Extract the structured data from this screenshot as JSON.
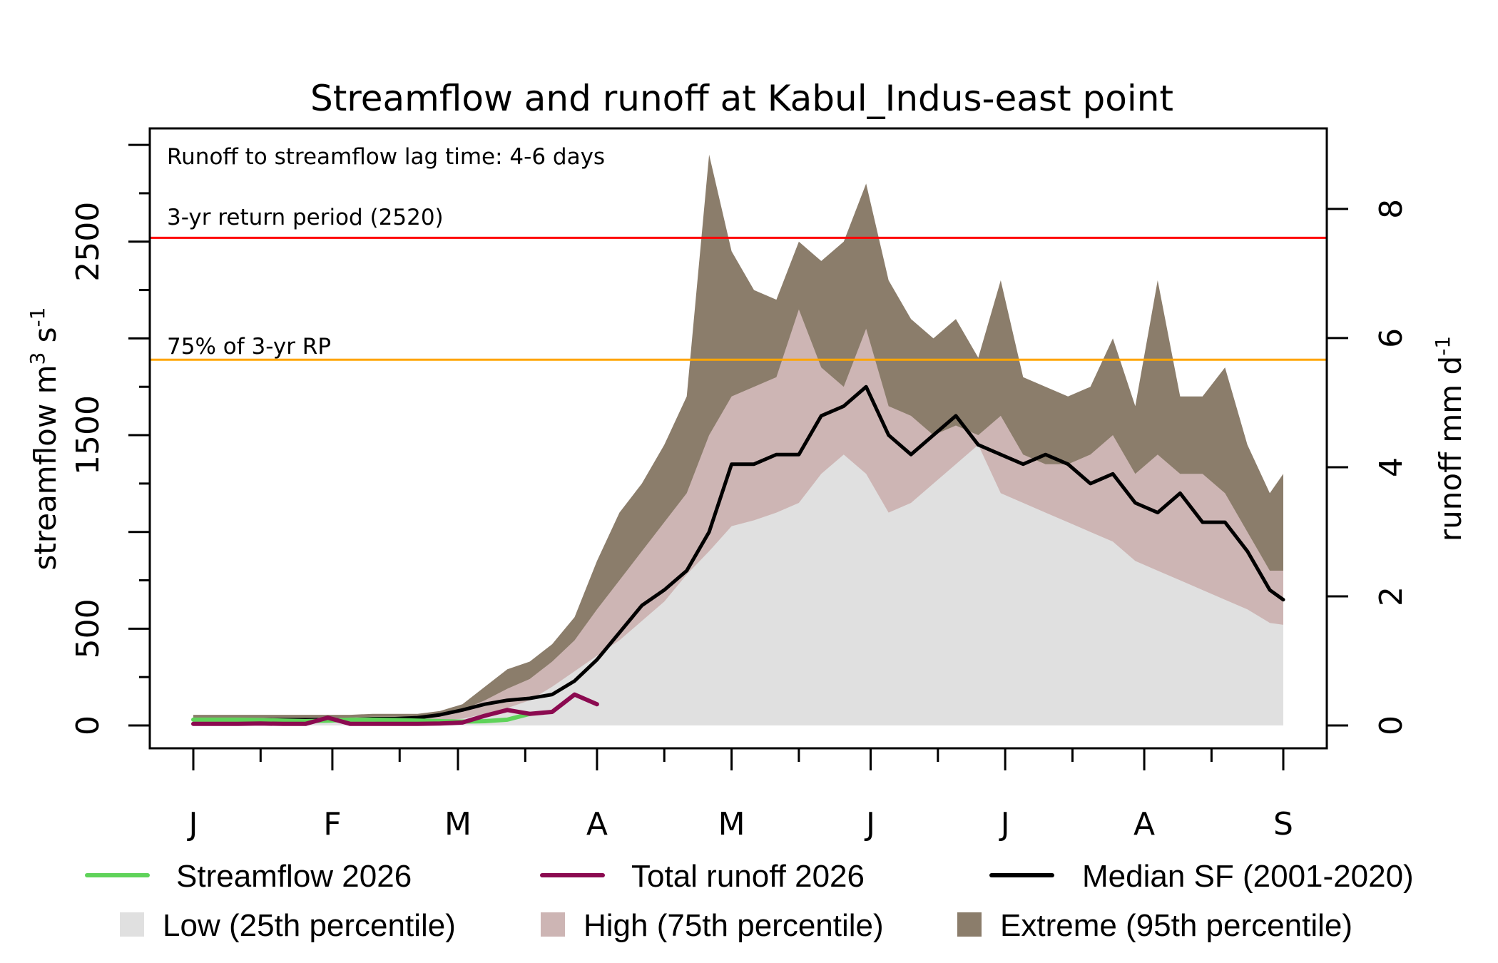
{
  "chart_data": {
    "type": "area",
    "title": "Streamflow and runoff at Kabul_Indus-east point",
    "annotation": "Runoff to streamflow lag time: 4-6 days",
    "xlabel": "",
    "ylabel": "streamflow m3 s-1",
    "ylabel_parts": {
      "base": "streamflow m",
      "sup1": "3",
      "mid": "s",
      "sup2": "-1"
    },
    "y2label_parts": {
      "base": "runoff mm d",
      "sup": "-1"
    },
    "ylim": [
      0,
      3000
    ],
    "y2_ticks": [
      0,
      2,
      4,
      6,
      8
    ],
    "y2_per_streamflow_unit": 0.0029973,
    "y_ticks": [
      0,
      500,
      1500,
      2500
    ],
    "y_minor_ticks": [
      250,
      750,
      1000,
      1250,
      1750,
      2000,
      2250,
      2750,
      3000
    ],
    "x_month_ticks": [
      {
        "label": "J",
        "day": 0
      },
      {
        "label": "F",
        "day": 31
      },
      {
        "label": "M",
        "day": 59
      },
      {
        "label": "A",
        "day": 90
      },
      {
        "label": "M",
        "day": 120
      },
      {
        "label": "J",
        "day": 151
      },
      {
        "label": "J",
        "day": 181
      },
      {
        "label": "A",
        "day": 212
      },
      {
        "label": "S",
        "day": 243
      }
    ],
    "x_minor_ticks": [
      15,
      46,
      74,
      105,
      135,
      166,
      196,
      227
    ],
    "xlim_days": [
      -10,
      256
    ],
    "reference_lines": [
      {
        "label": "3-yr return period (2520)",
        "value": 2520,
        "color": "#FF0000"
      },
      {
        "label": "75% of 3-yr RP",
        "value": 1890,
        "color": "#FFA500"
      }
    ],
    "x_days": [
      0,
      5,
      10,
      15,
      20,
      25,
      30,
      35,
      40,
      45,
      50,
      55,
      60,
      65,
      70,
      75,
      80,
      85,
      90,
      95,
      100,
      105,
      110,
      115,
      120,
      125,
      130,
      135,
      140,
      145,
      150,
      155,
      160,
      165,
      170,
      175,
      180,
      185,
      190,
      195,
      200,
      205,
      210,
      215,
      220,
      225,
      230,
      235,
      240,
      243
    ],
    "series": [
      {
        "name": "Extreme (95th percentile)",
        "kind": "band",
        "color": "#8B7D6B",
        "values": [
          55,
          55,
          55,
          55,
          55,
          55,
          55,
          55,
          60,
          60,
          60,
          75,
          110,
          200,
          290,
          330,
          420,
          560,
          850,
          1100,
          1250,
          1450,
          1700,
          2950,
          2450,
          2250,
          2200,
          2500,
          2400,
          2500,
          2800,
          2300,
          2100,
          2000,
          2100,
          1900,
          2300,
          1800,
          1750,
          1700,
          1750,
          2000,
          1650,
          2300,
          1700,
          1700,
          1850,
          1450,
          1200,
          1300
        ]
      },
      {
        "name": "High (75th percentile)",
        "kind": "band",
        "color": "#CDB5B4",
        "values": [
          40,
          40,
          40,
          40,
          40,
          40,
          40,
          40,
          45,
          45,
          45,
          55,
          80,
          130,
          190,
          240,
          330,
          440,
          600,
          750,
          900,
          1050,
          1200,
          1500,
          1700,
          1750,
          1800,
          2150,
          1850,
          1750,
          2050,
          1650,
          1600,
          1500,
          1550,
          1500,
          1600,
          1400,
          1350,
          1350,
          1400,
          1500,
          1300,
          1400,
          1300,
          1300,
          1200,
          1000,
          800,
          800
        ]
      },
      {
        "name": "Low (25th percentile)",
        "kind": "band",
        "color": "#E0E0E0",
        "values": [
          15,
          15,
          15,
          15,
          15,
          15,
          15,
          15,
          20,
          20,
          20,
          25,
          35,
          60,
          90,
          130,
          200,
          280,
          360,
          440,
          540,
          640,
          780,
          900,
          1030,
          1060,
          1100,
          1150,
          1300,
          1400,
          1300,
          1100,
          1150,
          1250,
          1350,
          1450,
          1200,
          1150,
          1100,
          1050,
          1000,
          950,
          850,
          800,
          750,
          700,
          650,
          600,
          530,
          520
        ]
      },
      {
        "name": "Median SF (2001-2020)",
        "kind": "line",
        "color": "#000000",
        "values": [
          30,
          30,
          30,
          30,
          30,
          30,
          30,
          30,
          35,
          35,
          40,
          55,
          80,
          110,
          130,
          140,
          160,
          230,
          340,
          480,
          620,
          700,
          800,
          1000,
          1350,
          1350,
          1400,
          1400,
          1600,
          1650,
          1750,
          1500,
          1400,
          1500,
          1600,
          1450,
          1400,
          1350,
          1400,
          1350,
          1250,
          1300,
          1150,
          1100,
          1200,
          1050,
          1050,
          900,
          700,
          650
        ]
      },
      {
        "name": "Streamflow 2026",
        "kind": "line",
        "color": "#5FD35A",
        "values": [
          30,
          30,
          30,
          28,
          25,
          22,
          25,
          30,
          30,
          28,
          25,
          22,
          20,
          22,
          30,
          60,
          null,
          null,
          null,
          null,
          null,
          null,
          null,
          null,
          null,
          null,
          null,
          null,
          null,
          null,
          null,
          null,
          null,
          null,
          null,
          null,
          null,
          null,
          null,
          null,
          null,
          null,
          null,
          null,
          null,
          null,
          null,
          null,
          null,
          null
        ]
      },
      {
        "name": "Total runoff 2026",
        "kind": "line",
        "axis": "right",
        "color": "#8B0A50",
        "values_streamflow_equiv": [
          8,
          8,
          8,
          10,
          8,
          8,
          40,
          8,
          8,
          8,
          8,
          10,
          15,
          50,
          80,
          60,
          70,
          160,
          110,
          null,
          null,
          null,
          null,
          null,
          null,
          null,
          null,
          null,
          null,
          null,
          null,
          null,
          null,
          null,
          null,
          null,
          null,
          null,
          null,
          null,
          null,
          null,
          null,
          null,
          null,
          null,
          null,
          null,
          null,
          null
        ]
      }
    ],
    "legend": {
      "placement": "bottom",
      "items": [
        {
          "label": "Streamflow 2026",
          "kind": "line",
          "color": "#5FD35A"
        },
        {
          "label": "Total runoff 2026",
          "kind": "line",
          "color": "#8B0A50"
        },
        {
          "label": "Median SF (2001-2020)",
          "kind": "line",
          "color": "#000000"
        },
        {
          "label": "Low (25th percentile)",
          "kind": "box",
          "color": "#E0E0E0"
        },
        {
          "label": "High (75th percentile)",
          "kind": "box",
          "color": "#CDB5B4"
        },
        {
          "label": "Extreme (95th percentile)",
          "kind": "box",
          "color": "#8B7D6B"
        }
      ]
    },
    "grid": false
  }
}
